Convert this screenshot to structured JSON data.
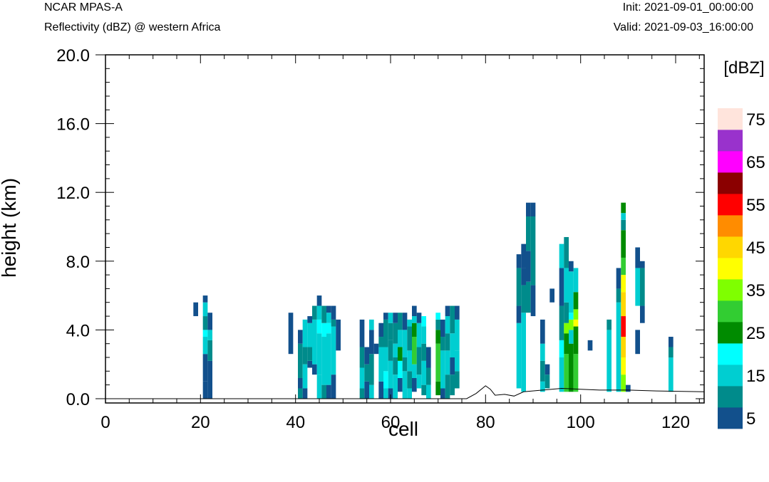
{
  "header": {
    "left_title": "NCAR MPAS-A",
    "left_subtitle": "Reflectivity (dBZ) @ western Africa",
    "init": "Init: 2021-09-01_00:00:00",
    "valid": "Valid: 2021-09-03_16:00:00"
  },
  "chart_data": {
    "type": "heatmap",
    "xlabel": "cell",
    "ylabel": "height (km)",
    "xlim": [
      0,
      126
    ],
    "ylim": [
      -0.25,
      20.0
    ],
    "x_ticks": [
      0,
      20,
      40,
      60,
      80,
      100,
      120
    ],
    "x_tick_labels": [
      "0",
      "20",
      "40",
      "60",
      "80",
      "100",
      "120"
    ],
    "y_ticks": [
      0,
      4,
      8,
      12,
      16,
      20
    ],
    "y_tick_labels": [
      "0.0",
      "4.0",
      "8.0",
      "12.0",
      "16.0",
      "20.0"
    ],
    "colorbar": {
      "title": "[dBZ]",
      "levels": [
        5,
        10,
        15,
        20,
        25,
        30,
        35,
        40,
        45,
        50,
        55,
        60,
        65,
        70,
        75
      ],
      "labels": [
        "5",
        "15",
        "25",
        "35",
        "45",
        "55",
        "65",
        "75"
      ],
      "colors": [
        "#12508c",
        "#008b8b",
        "#00ced1",
        "#00ffff",
        "#008b00",
        "#32cd32",
        "#7fff00",
        "#ffff00",
        "#ffd700",
        "#ff8c00",
        "#ff0000",
        "#8b0000",
        "#ff00ff",
        "#9932cc",
        "#ffe4dc"
      ]
    },
    "terrain": [
      [
        0,
        0.0
      ],
      [
        76,
        0.0
      ],
      [
        78,
        0.3
      ],
      [
        80,
        0.75
      ],
      [
        81,
        0.55
      ],
      [
        82,
        0.2
      ],
      [
        84,
        0.25
      ],
      [
        86,
        0.15
      ],
      [
        88,
        0.4
      ],
      [
        92,
        0.5
      ],
      [
        96,
        0.6
      ],
      [
        100,
        0.55
      ],
      [
        104,
        0.5
      ],
      [
        110,
        0.5
      ],
      [
        116,
        0.45
      ],
      [
        126,
        0.4
      ]
    ],
    "columns": [
      {
        "x": 19,
        "c": [
          "4.8-5.6:0"
        ]
      },
      {
        "x": 21,
        "c": [
          "0.0-1.0:0",
          "1.0-2.6:0",
          "2.6-3.6:2",
          "3.6-4.0:3",
          "4.0-4.8:1",
          "4.8-5.6:2",
          "5.6-6.0:0"
        ]
      },
      {
        "x": 22,
        "c": [
          "0.0-2.2:0",
          "2.2-3.4:1",
          "3.4-4.0:2",
          "4.0-5.0:0"
        ]
      },
      {
        "x": 39,
        "c": [
          "2.6-5.0:0"
        ]
      },
      {
        "x": 41,
        "c": [
          "0.0-0.6:1",
          "0.6-1.2:0",
          "1.2-3.2:1",
          "3.2-4.0:0"
        ]
      },
      {
        "x": 42,
        "c": [
          "0.0-0.6:0",
          "0.6-2.0:2",
          "2.0-3.0:1",
          "3.0-4.6:2"
        ]
      },
      {
        "x": 43,
        "c": [
          "1.8-2.2:0",
          "2.2-3.0:1",
          "3.0-4.4:2",
          "4.4-4.8:0"
        ]
      },
      {
        "x": 44,
        "c": [
          "1.4-2.0:0",
          "2.0-4.6:2",
          "4.6-5.4:1"
        ]
      },
      {
        "x": 45,
        "c": [
          "0.0-1.4:2",
          "1.4-3.8:2",
          "3.8-4.6:3",
          "4.6-5.4:2",
          "5.4-6.0:0"
        ]
      },
      {
        "x": 46,
        "c": [
          "0.0-0.8:1",
          "0.8-3.6:2",
          "3.6-4.4:3",
          "4.4-5.4:1"
        ]
      },
      {
        "x": 47,
        "c": [
          "0.0-0.8:0",
          "0.8-3.8:2",
          "3.8-4.4:3",
          "4.4-5.0:2",
          "5.0-5.4:0"
        ]
      },
      {
        "x": 48,
        "c": [
          "0.0-1.4:0",
          "1.4-4.2:2",
          "4.2-4.6:1",
          "4.6-5.4:0"
        ]
      },
      {
        "x": 49,
        "c": [
          "2.8-4.6:0"
        ]
      },
      {
        "x": 54,
        "c": [
          "0.0-0.6:1",
          "0.6-1.8:2",
          "1.8-3.0:1",
          "3.0-4.6:0"
        ]
      },
      {
        "x": 55,
        "c": [
          "0.0-1.0:0",
          "1.0-2.0:1",
          "2.0-3.0:0"
        ]
      },
      {
        "x": 56,
        "c": [
          "0.0-0.8:2",
          "0.8-2.6:1",
          "2.6-4.0:0",
          "4.0-4.6:2"
        ]
      },
      {
        "x": 57,
        "c": [
          "2.6-3.2:0"
        ]
      },
      {
        "x": 58,
        "c": [
          "0.0-1.0:0",
          "1.0-3.0:2",
          "3.0-3.6:1",
          "3.6-4.4:0"
        ]
      },
      {
        "x": 59,
        "c": [
          "0.0-0.6:2",
          "0.6-1.6:3",
          "1.6-3.0:2",
          "3.0-4.6:1",
          "4.6-5.0:0"
        ]
      },
      {
        "x": 60,
        "c": [
          "0.0-0.6:0",
          "0.6-2.2:2",
          "2.2-3.4:1",
          "3.4-4.4:1",
          "4.4-5.0:2"
        ]
      },
      {
        "x": 61,
        "c": [
          "0.0-1.4:2",
          "1.4-2.4:1",
          "2.4-3.2:2",
          "3.2-4.4:1",
          "4.4-5.0:0"
        ]
      },
      {
        "x": 62,
        "c": [
          "0.4-1.2:0",
          "1.2-2.2:3",
          "2.2-3.0:4",
          "3.0-4.0:2",
          "4.0-5.0:1"
        ]
      },
      {
        "x": 63,
        "c": [
          "0.0-0.6:2",
          "0.6-1.6:2",
          "1.6-2.4:1",
          "2.4-4.0:2",
          "4.0-5.0:0"
        ]
      },
      {
        "x": 64,
        "c": [
          "0.0-0.6:2",
          "0.6-1.6:1",
          "1.6-2.8:2",
          "2.8-4.2:1",
          "4.2-4.6:2"
        ]
      },
      {
        "x": 65,
        "c": [
          "0.4-1.2:0",
          "1.2-2.0:2",
          "2.0-3.6:5",
          "3.6-4.4:4",
          "4.4-4.8:2",
          "4.8-5.4:0"
        ]
      },
      {
        "x": 66,
        "c": [
          "0.6-1.4:2",
          "1.4-3.0:1",
          "3.0-4.4:2",
          "4.4-5.0:0"
        ]
      },
      {
        "x": 67,
        "c": [
          "0.2-0.8:1",
          "0.8-2.2:2",
          "2.2-3.2:1",
          "3.2-4.2:2",
          "4.2-4.8:3"
        ]
      },
      {
        "x": 68,
        "c": [
          "0.0-0.8:2",
          "0.8-1.8:1",
          "1.8-3.0:0"
        ]
      },
      {
        "x": 70,
        "c": [
          "0.2-1.0:4",
          "1.0-3.2:5",
          "3.2-4.0:4",
          "4.0-4.6:1",
          "4.6-5.0:3"
        ]
      },
      {
        "x": 71,
        "c": [
          "0.0-0.6:0",
          "0.6-2.8:2",
          "2.8-3.6:1",
          "3.6-4.6:0"
        ]
      },
      {
        "x": 72,
        "c": [
          "0.0-1.4:1",
          "1.4-2.8:2",
          "2.8-3.8:1",
          "3.8-4.8:2",
          "4.8-5.4:0"
        ]
      },
      {
        "x": 73,
        "c": [
          "0.2-1.4:1",
          "1.4-2.4:0",
          "2.4-3.8:2",
          "3.8-5.4:1"
        ]
      },
      {
        "x": 74,
        "c": [
          "0.6-1.6:1",
          "1.6-2.8:2",
          "2.8-4.6:2",
          "4.6-5.4:0"
        ]
      },
      {
        "x": 87,
        "c": [
          "0.6-4.4:2",
          "4.4-5.4:0",
          "5.4-7.6:1",
          "7.6-8.4:0"
        ]
      },
      {
        "x": 88,
        "c": [
          "0.4-5.0:2",
          "5.0-6.6:1",
          "6.6-7.6:0",
          "7.6-9.0:0"
        ]
      },
      {
        "x": 89,
        "c": [
          "5.0-6.8:1",
          "6.8-8.6:0",
          "8.6-10.6:1",
          "10.6-11.4:0"
        ]
      },
      {
        "x": 90,
        "c": [
          "4.8-6.6:0",
          "6.6-10.6:1",
          "10.6-11.4:0"
        ]
      },
      {
        "x": 92,
        "c": [
          "0.4-1.0:2",
          "1.0-2.2:1",
          "2.2-3.2:2",
          "3.2-4.6:0"
        ]
      },
      {
        "x": 93,
        "c": [
          "0.6-1.4:1",
          "1.4-2.0:0"
        ]
      },
      {
        "x": 94,
        "c": [
          "5.6-6.4:0"
        ]
      },
      {
        "x": 96,
        "c": [
          "0.4-2.4:2",
          "2.4-3.4:3",
          "3.4-5.4:1",
          "5.4-7.6:0",
          "7.6-9.0:2"
        ]
      },
      {
        "x": 97,
        "c": [
          "0.4-2.6:5",
          "2.6-3.8:4",
          "3.8-4.4:6",
          "4.4-5.6:1",
          "5.6-7.6:2",
          "7.6-9.4:1"
        ]
      },
      {
        "x": 98,
        "c": [
          "0.4-3.2:4",
          "3.2-4.0:2",
          "4.0-4.6:6",
          "4.6-5.0:3",
          "5.0-7.4:2",
          "7.4-8.0:0"
        ]
      },
      {
        "x": 99,
        "c": [
          "0.4-2.6:5",
          "2.6-4.2:4",
          "4.2-4.6:7",
          "4.6-5.2:6",
          "5.2-6.2:4",
          "6.2-7.6:2"
        ]
      },
      {
        "x": 102,
        "c": [
          "2.8-3.4:0"
        ]
      },
      {
        "x": 106,
        "c": [
          "0.4-4.0:2",
          "4.0-4.6:1"
        ]
      },
      {
        "x": 108,
        "c": [
          "0.4-5.6:2",
          "5.6-6.4:1",
          "6.4-7.6:0"
        ]
      },
      {
        "x": 109,
        "c": [
          "0.4-1.4:6",
          "1.4-2.4:7",
          "2.4-3.6:8",
          "3.6-4.8:10",
          "4.8-6.2:8",
          "6.2-7.2:7",
          "7.2-8.2:5",
          "8.2-9.8:4",
          "9.8-10.4:1",
          "10.4-10.8:2",
          "10.8-11.4:4"
        ]
      },
      {
        "x": 110,
        "c": [
          "0.4-0.8:0"
        ]
      },
      {
        "x": 112,
        "c": [
          "2.6-4.0:0",
          "5.4-7.6:2",
          "7.6-8.8:0"
        ]
      },
      {
        "x": 113,
        "c": [
          "5.4-7.6:1",
          "7.6-8.0:0",
          "4.4-5.4:0"
        ]
      },
      {
        "x": 119,
        "c": [
          "0.4-2.4:2",
          "2.4-3.0:1",
          "3.0-3.6:0"
        ]
      }
    ]
  }
}
